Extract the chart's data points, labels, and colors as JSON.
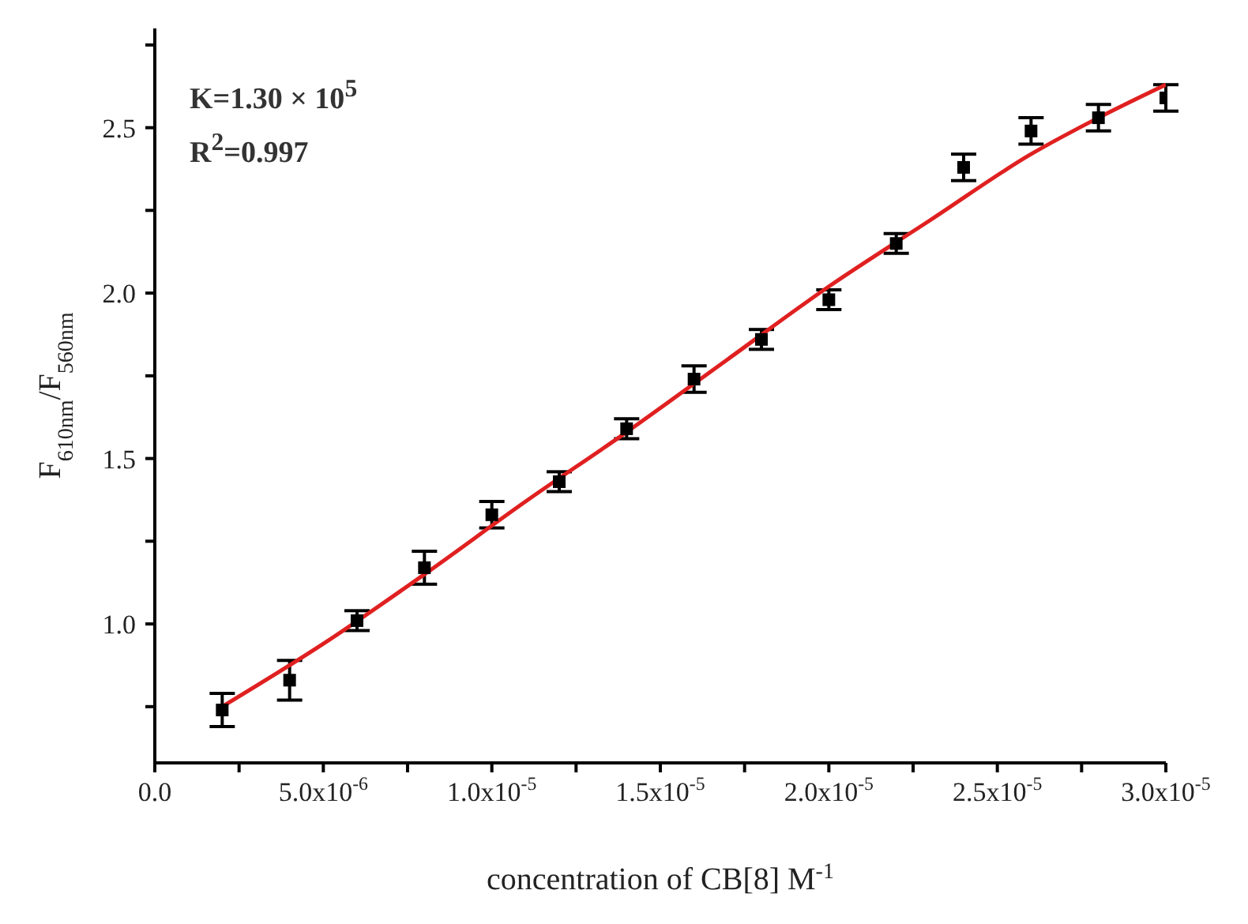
{
  "chart_data": {
    "type": "scatter",
    "xlabel": "concentration of CB[8] M$^{-1}$",
    "ylabel": "F$_{610nm}$/F$_{560nm}$",
    "annotations": [
      "K=1.30 × 10$^{5}$",
      "R$^{2}$=0.997"
    ],
    "marker": "square",
    "xlim": [
      0,
      3e-05
    ],
    "ylim": [
      0.58,
      2.8
    ],
    "xticks": [
      {
        "value": 0,
        "label": "0.0"
      },
      {
        "value": 2.5e-06,
        "label": null
      },
      {
        "value": 5e-06,
        "label": "5.0x10$^{-6}$"
      },
      {
        "value": 7.5e-06,
        "label": null
      },
      {
        "value": 1e-05,
        "label": "1.0x10$^{-5}$"
      },
      {
        "value": 1.25e-05,
        "label": null
      },
      {
        "value": 1.5e-05,
        "label": "1.5x10$^{-5}$"
      },
      {
        "value": 1.75e-05,
        "label": null
      },
      {
        "value": 2e-05,
        "label": "2.0x10$^{-5}$"
      },
      {
        "value": 2.25e-05,
        "label": null
      },
      {
        "value": 2.5e-05,
        "label": "2.5x10$^{-5}$"
      },
      {
        "value": 2.75e-05,
        "label": null
      },
      {
        "value": 3e-05,
        "label": "3.0x10$^{-5}$"
      }
    ],
    "yticks": [
      {
        "value": 0.75,
        "label": null
      },
      {
        "value": 1.0,
        "label": "1.0"
      },
      {
        "value": 1.25,
        "label": null
      },
      {
        "value": 1.5,
        "label": "1.5"
      },
      {
        "value": 1.75,
        "label": null
      },
      {
        "value": 2.0,
        "label": "2.0"
      },
      {
        "value": 2.25,
        "label": null
      },
      {
        "value": 2.5,
        "label": "2.5"
      },
      {
        "value": 2.75,
        "label": null
      }
    ],
    "series": [
      {
        "color": "#000000",
        "x": [
          2e-06,
          4e-06,
          6e-06,
          8e-06,
          1e-05,
          1.2e-05,
          1.4e-05,
          1.6e-05,
          1.8e-05,
          2e-05,
          2.2e-05,
          2.4e-05,
          2.6e-05,
          2.8e-05,
          3e-05
        ],
        "values": [
          0.74,
          0.83,
          1.01,
          1.17,
          1.33,
          1.43,
          1.59,
          1.74,
          1.86,
          1.98,
          2.15,
          2.38,
          2.49,
          2.53,
          2.59
        ],
        "errors": [
          0.05,
          0.06,
          0.03,
          0.05,
          0.04,
          0.03,
          0.03,
          0.04,
          0.03,
          0.03,
          0.03,
          0.04,
          0.04,
          0.04,
          0.04
        ]
      },
      {
        "type": "line",
        "color": "#e02020",
        "marker": "none",
        "x": [
          2e-06,
          5e-06,
          8e-06,
          1.1e-05,
          1.4e-05,
          1.7e-05,
          2e-05,
          2.3e-05,
          2.6e-05,
          2.8e-05,
          3e-05
        ],
        "values": [
          0.75,
          0.94,
          1.15,
          1.37,
          1.58,
          1.8,
          2.02,
          2.22,
          2.42,
          2.53,
          2.63
        ]
      }
    ]
  }
}
